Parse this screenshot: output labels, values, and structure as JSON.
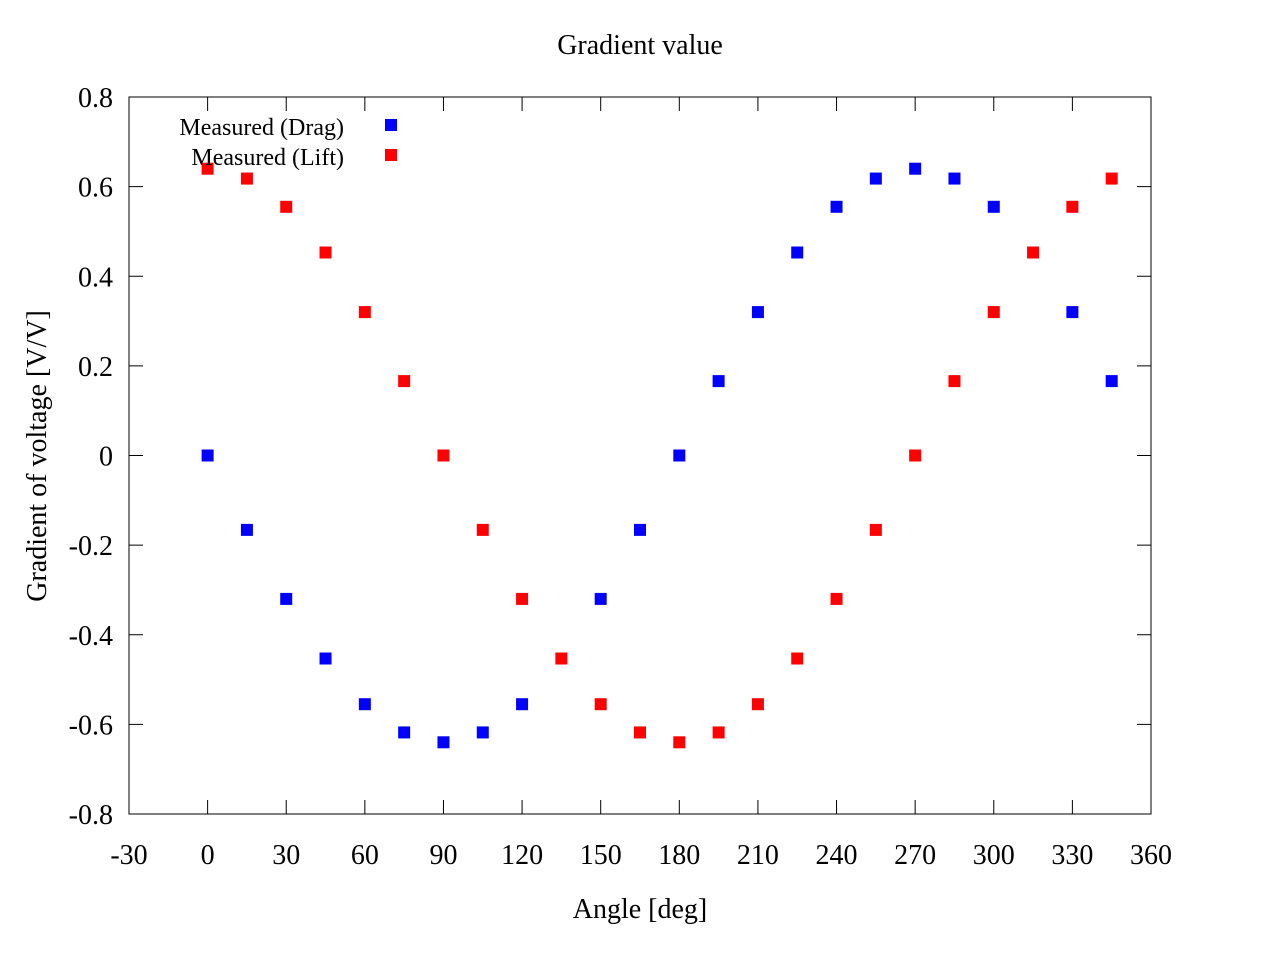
{
  "chart_data": {
    "type": "scatter",
    "title": "Gradient value",
    "xlabel": "Angle [deg]",
    "ylabel": "Gradient of voltage [V/V]",
    "xlim": [
      -30,
      360
    ],
    "ylim": [
      -0.8,
      0.8
    ],
    "xticks": [
      "-30",
      "0",
      "30",
      "60",
      "90",
      "120",
      "150",
      "180",
      "210",
      "240",
      "270",
      "300",
      "330",
      "360"
    ],
    "yticks": [
      "0.8",
      "0.6",
      "0.4",
      "0.2",
      "0",
      "-0.2",
      "-0.4",
      "-0.6",
      "-0.8"
    ],
    "xtick_values": [
      -30,
      0,
      30,
      60,
      90,
      120,
      150,
      180,
      210,
      240,
      270,
      300,
      330,
      360
    ],
    "ytick_values": [
      0.8,
      0.6,
      0.4,
      0.2,
      0,
      -0.2,
      -0.4,
      -0.6,
      -0.8
    ],
    "grid": false,
    "legend_position": "top-left",
    "x": [
      0,
      15,
      30,
      45,
      60,
      75,
      90,
      105,
      120,
      135,
      150,
      165,
      180,
      195,
      210,
      225,
      240,
      255,
      270,
      285,
      300,
      315,
      330,
      345
    ],
    "series": [
      {
        "name": "Measured (Drag)",
        "color": "#0000ff",
        "values": [
          0,
          -0.166,
          -0.32,
          -0.453,
          -0.555,
          -0.618,
          -0.64,
          -0.618,
          -0.555,
          null,
          -0.32,
          -0.166,
          0,
          0.166,
          0.32,
          0.453,
          0.555,
          0.618,
          0.64,
          0.618,
          0.555,
          null,
          0.32,
          0.166
        ]
      },
      {
        "name": "Measured (Lift)",
        "color": "#ff0000",
        "values": [
          0.64,
          0.618,
          0.555,
          0.453,
          0.32,
          0.166,
          0,
          -0.166,
          -0.32,
          -0.453,
          -0.555,
          -0.618,
          -0.64,
          -0.618,
          -0.555,
          -0.453,
          -0.32,
          -0.166,
          0,
          0.166,
          0.32,
          0.453,
          0.555,
          0.618
        ]
      }
    ]
  }
}
